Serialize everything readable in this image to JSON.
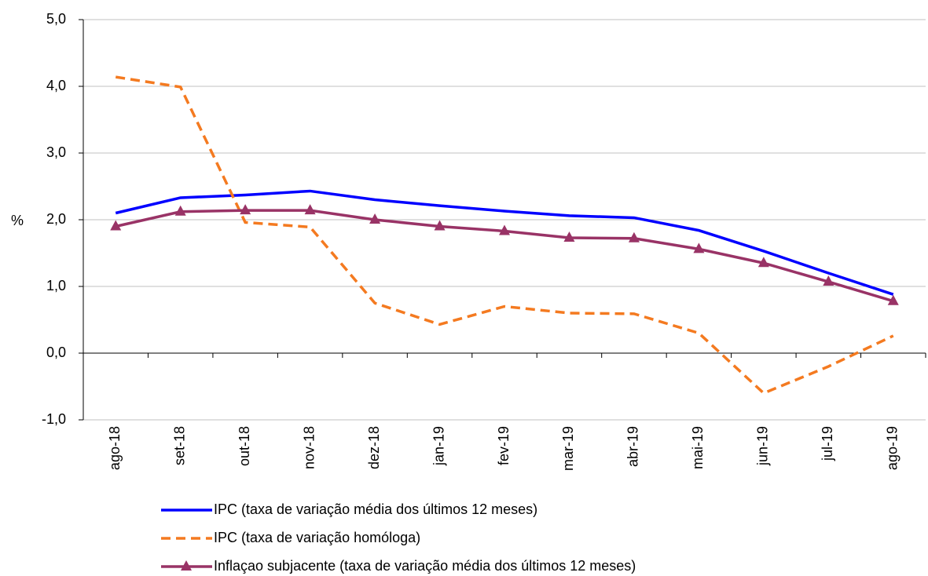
{
  "chart_data": {
    "type": "line",
    "y_label": "%",
    "categories": [
      "ago-18",
      "set-18",
      "out-18",
      "nov-18",
      "dez-18",
      "jan-19",
      "fev-19",
      "mar-19",
      "abr-19",
      "mai-19",
      "jun-19",
      "jul-19",
      "ago-19"
    ],
    "series": [
      {
        "name": "IPC (taxa de variação média dos últimos 12 meses)",
        "color": "#0000ff",
        "dash": "solid",
        "marker": "none",
        "values": [
          2.1,
          2.33,
          2.37,
          2.43,
          2.3,
          2.21,
          2.13,
          2.06,
          2.03,
          1.84,
          1.53,
          1.2,
          0.88
        ]
      },
      {
        "name": "IPC (taxa de variação homóloga)",
        "color": "#f47a20",
        "dash": "dashed",
        "marker": "none",
        "values": [
          4.14,
          3.99,
          1.96,
          1.89,
          0.75,
          0.43,
          0.7,
          0.6,
          0.59,
          0.3,
          -0.6,
          -0.2,
          0.26
        ]
      },
      {
        "name": "Inflaçao subjacente (taxa de variação média dos últimos 12 meses)",
        "color": "#993366",
        "dash": "solid",
        "marker": "triangle",
        "values": [
          1.9,
          2.12,
          2.14,
          2.14,
          2.0,
          1.9,
          1.83,
          1.73,
          1.72,
          1.56,
          1.35,
          1.07,
          0.78
        ]
      }
    ],
    "ylim": [
      -1,
      5
    ],
    "yticks": [
      {
        "value": -1,
        "label": "-1,0"
      },
      {
        "value": 0,
        "label": "0,0"
      },
      {
        "value": 1,
        "label": "1,0"
      },
      {
        "value": 2,
        "label": "2,0"
      },
      {
        "value": 3,
        "label": "3,0"
      },
      {
        "value": 4,
        "label": "4,0"
      },
      {
        "value": 5,
        "label": "5,0"
      }
    ],
    "grid": true,
    "legend": "bottom"
  }
}
